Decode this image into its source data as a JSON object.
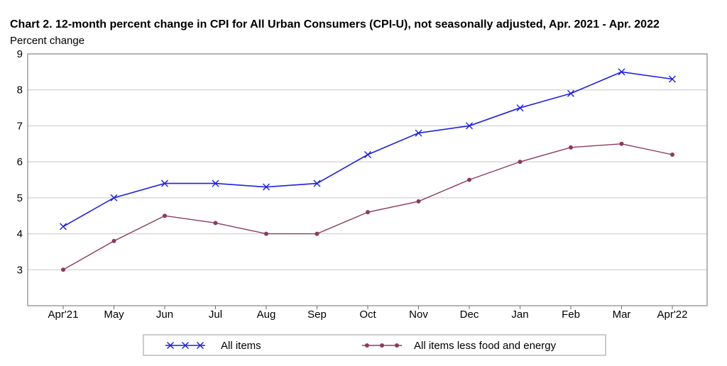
{
  "chart_data": {
    "type": "line",
    "title": "Chart 2. 12-month percent change in CPI for All Urban Consumers (CPI-U), not seasonally adjusted, Apr. 2021 - Apr. 2022",
    "ylabel": "Percent change",
    "xlabel": "",
    "categories": [
      "Apr'21",
      "May",
      "Jun",
      "Jul",
      "Aug",
      "Sep",
      "Oct",
      "Nov",
      "Dec",
      "Jan",
      "Feb",
      "Mar",
      "Apr'22"
    ],
    "ylim": [
      2,
      9
    ],
    "yticks": [
      3,
      4,
      5,
      6,
      7,
      8,
      9
    ],
    "grid": true,
    "legend_position": "bottom",
    "series": [
      {
        "name": "All items",
        "color": "#1f1fe6",
        "marker": "x",
        "values": [
          4.2,
          5.0,
          5.4,
          5.4,
          5.3,
          5.4,
          6.2,
          6.8,
          7.0,
          7.5,
          7.9,
          8.5,
          8.3
        ]
      },
      {
        "name": "All items less food and energy",
        "color": "#8b3a62",
        "marker": "dot",
        "values": [
          3.0,
          3.8,
          4.5,
          4.3,
          4.0,
          4.0,
          4.6,
          4.9,
          5.5,
          6.0,
          6.4,
          6.5,
          6.2
        ]
      }
    ]
  }
}
